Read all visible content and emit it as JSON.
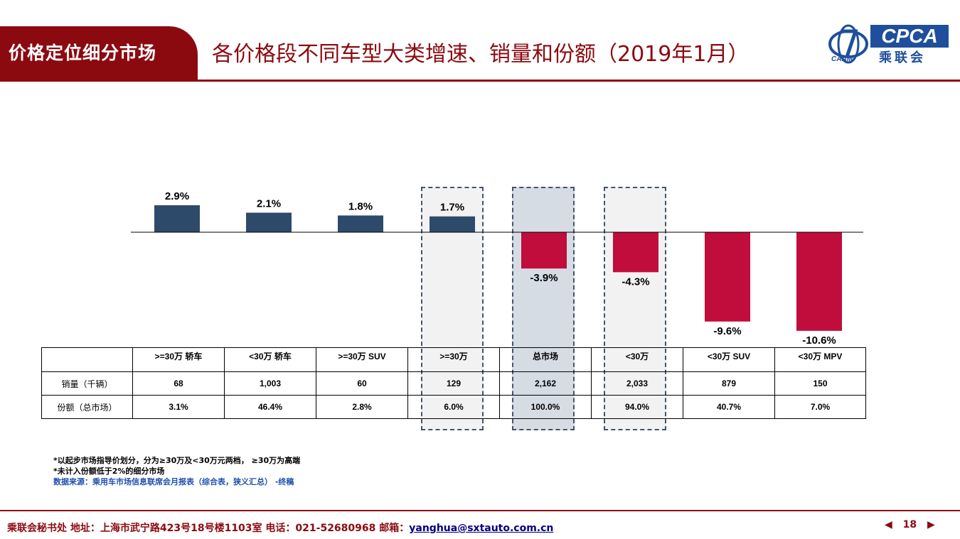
{
  "header": {
    "section_tab": "价格定位细分市场",
    "title": "各价格段不同车型大类增速、销量和份额（2019年1月）",
    "logo": {
      "org_en": "CPCA",
      "org_cn": "乘联会",
      "caam": "CAAM",
      "icon": "cpca-logo-icon"
    }
  },
  "colors": {
    "positive": "#2e4a6b",
    "negative": "#c00d3c",
    "brand": "#8b0a10",
    "highlight_fill": "#f2f2f2",
    "highlight_fill_total": "#d6dce4",
    "highlight_border": "#44546a"
  },
  "chart_data": {
    "type": "bar",
    "categories": [
      ">=30万 轿车",
      "<30万 轿车",
      ">=30万 SUV",
      ">=30万",
      "总市场",
      "<30万",
      "<30万 SUV",
      "<30万 MPV"
    ],
    "values": [
      2.9,
      2.1,
      1.8,
      1.7,
      -3.9,
      -4.3,
      -9.6,
      -10.6
    ],
    "value_labels": [
      "2.9%",
      "2.1%",
      "1.8%",
      "1.7%",
      "-3.9%",
      "-4.3%",
      "-9.6%",
      "-10.6%"
    ],
    "unit": "%",
    "highlighted_indices": [
      3,
      4,
      5
    ],
    "grid": false
  },
  "table": {
    "headers": [
      ">=30万 轿车",
      "<30万 轿车",
      ">=30万 SUV",
      ">=30万",
      "总市场",
      "<30万",
      "<30万 SUV",
      "<30万 MPV"
    ],
    "rows": [
      {
        "label": "销量（千辆）",
        "cells": [
          "68",
          "1,003",
          "60",
          "129",
          "2,162",
          "2,033",
          "879",
          "150"
        ]
      },
      {
        "label": "份额（总市场）",
        "cells": [
          "3.1%",
          "46.4%",
          "2.8%",
          "6.0%",
          "100.0%",
          "94.0%",
          "40.7%",
          "7.0%"
        ]
      }
    ]
  },
  "notes": {
    "line1": "*以起步市场指导价划分，分为≥30万及<30万元两档， ≥30万为高端",
    "line2": "*未计入份额低于2%的细分市场",
    "source": "数据来源：乘用车市场信息联席会月报表（综合表，狭义汇总） -终稿"
  },
  "footer": {
    "text": "乘联会秘书处   地址：上海市武宁路423号18号楼1103室  电话：021-52680968   邮箱：",
    "email": "yanghua@sxtauto.com.cn",
    "page_number": "18",
    "prev_icon": "triangle-left-icon",
    "next_icon": "triangle-right-icon"
  }
}
